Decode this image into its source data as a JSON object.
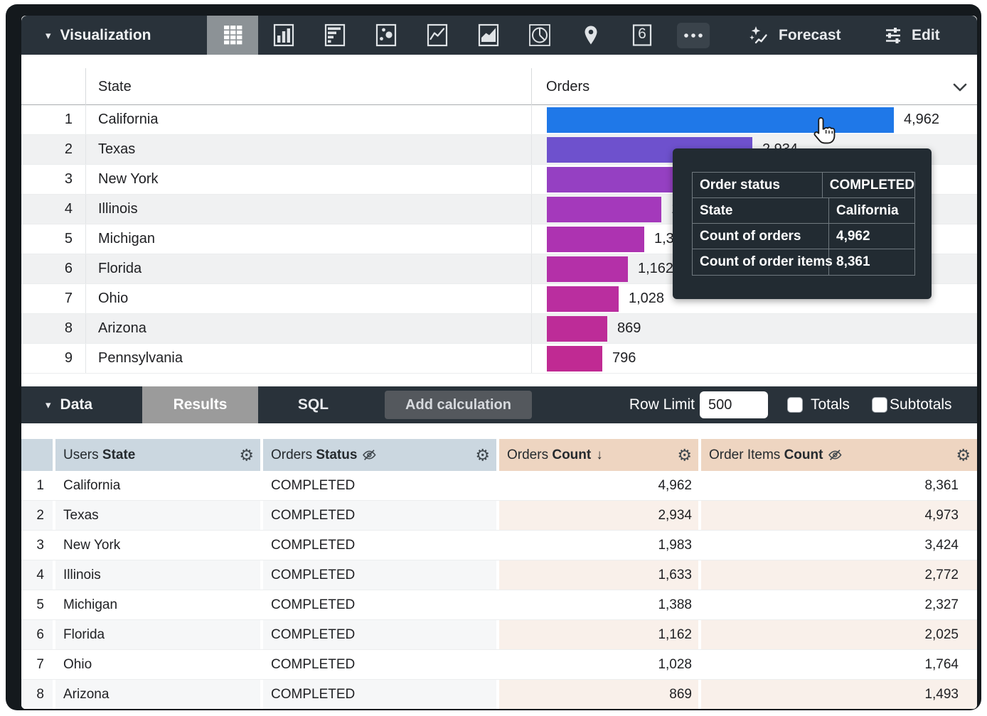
{
  "viz_toolbar": {
    "title": "Visualization",
    "single_value_glyph": "6",
    "forecast_label": "Forecast",
    "edit_label": "Edit",
    "icons": [
      "table-chart",
      "column-chart",
      "bar-chart",
      "scatter-chart",
      "line-chart",
      "area-chart",
      "pie-chart",
      "map-pin",
      "single-value",
      "more"
    ]
  },
  "viz_table": {
    "columns": {
      "state": "State",
      "orders": "Orders"
    },
    "rows": [
      {
        "index": "1",
        "state": "California",
        "value": "4,962",
        "color": "#1f78e8"
      },
      {
        "index": "2",
        "state": "Texas",
        "value": "2,934",
        "color": "#6e51cd"
      },
      {
        "index": "3",
        "state": "New York",
        "value": "1,983",
        "color": "#9540c2"
      },
      {
        "index": "4",
        "state": "Illinois",
        "value": "1,633",
        "color": "#a439bb"
      },
      {
        "index": "5",
        "state": "Michigan",
        "value": "1,388",
        "color": "#ad33b1"
      },
      {
        "index": "6",
        "state": "Florida",
        "value": "1,162",
        "color": "#b430a8"
      },
      {
        "index": "7",
        "state": "Ohio",
        "value": "1,028",
        "color": "#ba2e9f"
      },
      {
        "index": "8",
        "state": "Arizona",
        "value": "869",
        "color": "#bd2c98"
      },
      {
        "index": "9",
        "state": "Pennsylvania",
        "value": "796",
        "color": "#c02a93"
      }
    ]
  },
  "tooltip": {
    "rows": [
      {
        "label": "Order status",
        "value": "COMPLETED"
      },
      {
        "label": "State",
        "value": "California"
      },
      {
        "label": "Count of orders",
        "value": "4,962"
      },
      {
        "label": "Count of order items",
        "value": "8,361"
      }
    ]
  },
  "data_toolbar": {
    "title": "Data",
    "tab_results": "Results",
    "tab_sql": "SQL",
    "add_calculation_label": "Add calculation",
    "row_limit_label": "Row Limit",
    "row_limit_value": "500",
    "totals_label": "Totals",
    "subtotals_label": "Subtotals"
  },
  "data_table": {
    "headers": [
      {
        "prefix": "Users ",
        "field": "State",
        "hidden": false,
        "sorted": false
      },
      {
        "prefix": "Orders ",
        "field": "Status",
        "hidden": true,
        "sorted": false
      },
      {
        "prefix": "Orders ",
        "field": "Count",
        "hidden": false,
        "sorted": true,
        "sort_arrow": "↓"
      },
      {
        "prefix": "Order Items ",
        "field": "Count",
        "hidden": true,
        "sorted": false
      }
    ],
    "rows": [
      {
        "index": "1",
        "state": "California",
        "status": "COMPLETED",
        "count": "4,962",
        "items": "8,361"
      },
      {
        "index": "2",
        "state": "Texas",
        "status": "COMPLETED",
        "count": "2,934",
        "items": "4,973"
      },
      {
        "index": "3",
        "state": "New York",
        "status": "COMPLETED",
        "count": "1,983",
        "items": "3,424"
      },
      {
        "index": "4",
        "state": "Illinois",
        "status": "COMPLETED",
        "count": "1,633",
        "items": "2,772"
      },
      {
        "index": "5",
        "state": "Michigan",
        "status": "COMPLETED",
        "count": "1,388",
        "items": "2,327"
      },
      {
        "index": "6",
        "state": "Florida",
        "status": "COMPLETED",
        "count": "1,162",
        "items": "2,025"
      },
      {
        "index": "7",
        "state": "Ohio",
        "status": "COMPLETED",
        "count": "1,028",
        "items": "1,764"
      },
      {
        "index": "8",
        "state": "Arizona",
        "status": "COMPLETED",
        "count": "869",
        "items": "1,493"
      }
    ]
  },
  "chart_data": {
    "type": "bar",
    "orientation": "horizontal",
    "categories": [
      "California",
      "Texas",
      "New York",
      "Illinois",
      "Michigan",
      "Florida",
      "Ohio",
      "Arizona",
      "Pennsylvania"
    ],
    "values": [
      4962,
      2934,
      1983,
      1633,
      1388,
      1162,
      1028,
      869,
      796
    ],
    "title": "",
    "xlabel": "Orders",
    "ylabel": "State",
    "xlim": [
      0,
      4962
    ],
    "bar_colors": [
      "#1f78e8",
      "#6e51cd",
      "#9540c2",
      "#a439bb",
      "#ad33b1",
      "#b430a8",
      "#ba2e9f",
      "#bd2c98",
      "#c02a93"
    ]
  },
  "colors": {
    "toolbar_bg": "#29323a",
    "selected_icon_bg": "#8c9296",
    "results_tab_bg": "#9b9b9b",
    "dimension_header_bg": "#cbd7e0",
    "measure_header_bg": "#eed5c1",
    "tooltip_bg": "#222b32"
  }
}
